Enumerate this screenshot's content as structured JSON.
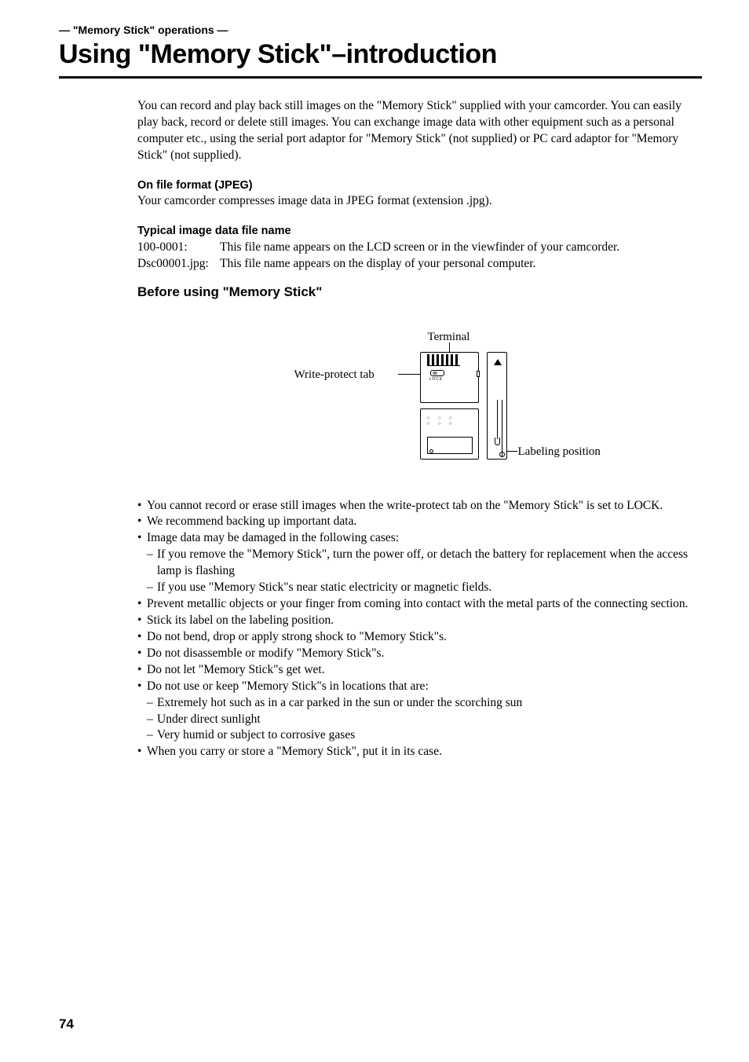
{
  "section_label": "— \"Memory Stick\" operations —",
  "main_title": "Using \"Memory Stick\"–introduction",
  "intro": "You can record and play back still images on the \"Memory Stick\" supplied with your camcorder. You can easily play back, record or delete still images. You can exchange image data with other equipment such as a personal computer etc., using the serial port adaptor for \"Memory Stick\" (not supplied) or PC card adaptor for \"Memory Stick\" (not supplied).",
  "file_format_hdr": "On file format (JPEG)",
  "file_format_body": "Your camcorder compresses image data in JPEG format (extension .jpg).",
  "typical_hdr": "Typical image data file name",
  "defs": [
    {
      "term": "100-0001:",
      "desc": "This file name appears on the LCD screen or in the viewfinder of your camcorder."
    },
    {
      "term": "Dsc00001.jpg:",
      "desc": "This file name appears on the display of your personal computer."
    }
  ],
  "before_heading": "Before using \"Memory Stick\"",
  "diagram": {
    "terminal": "Terminal",
    "write_protect": "Write-protect tab",
    "labeling": "Labeling position",
    "lock": "LOCK"
  },
  "bullets": [
    {
      "text": "You cannot record or erase still images when the write-protect tab on the \"Memory Stick\" is set to LOCK."
    },
    {
      "text": "We recommend backing up important data."
    },
    {
      "text": "Image data may be damaged in the following cases:",
      "subs": [
        "If you remove the \"Memory Stick\", turn the power off, or detach the battery for replacement when the access lamp is flashing",
        "If you use \"Memory Stick\"s near static electricity or magnetic fields."
      ]
    },
    {
      "text": "Prevent metallic objects or your finger from coming into contact with the metal parts of the connecting section."
    },
    {
      "text": "Stick its label on the labeling position."
    },
    {
      "text": "Do not bend, drop or apply strong shock to \"Memory Stick\"s."
    },
    {
      "text": "Do not disassemble or modify \"Memory Stick\"s."
    },
    {
      "text": "Do not let \"Memory Stick\"s get wet."
    },
    {
      "text": "Do not use or keep \"Memory Stick\"s in locations that are:",
      "subs": [
        "Extremely hot such as in a car parked in the sun or under the scorching sun",
        "Under direct sunlight",
        "Very humid or subject to corrosive gases"
      ]
    },
    {
      "text": "When you carry or store a \"Memory Stick\", put it in its case."
    }
  ],
  "page_number": "74"
}
